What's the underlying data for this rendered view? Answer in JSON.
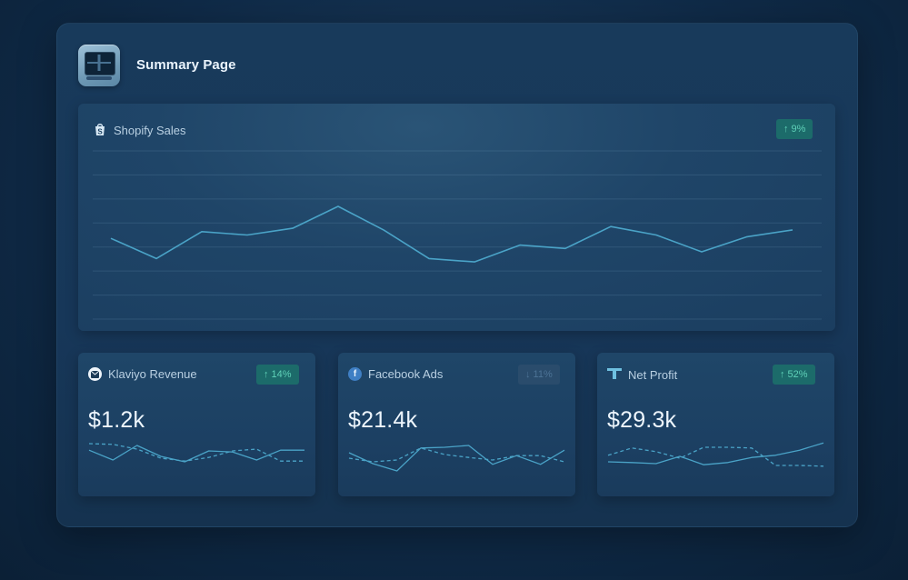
{
  "header": {
    "title": "Summary Page",
    "app_icon": "monitor-icon"
  },
  "colors": {
    "line": "#4aa3c7",
    "badge_up_bg": "#1c6b6a",
    "badge_up_text": "#5fd1b8",
    "badge_down_text": "#4c7396"
  },
  "main_chart": {
    "label": "Shopify Sales",
    "icon": "shopify-bag-icon",
    "badge": "↑ 9%"
  },
  "metrics": [
    {
      "label": "Klaviyo Revenue",
      "icon": "klaviyo-icon",
      "badge": "↑ 14%",
      "value": "$1.2k",
      "trend": "up"
    },
    {
      "label": "Facebook Ads",
      "icon": "facebook-icon",
      "badge": "↓ 11%",
      "value": "$21.4k",
      "trend": "down"
    },
    {
      "label": "Net Profit",
      "icon": "net-profit-icon",
      "badge": "↑ 52%",
      "value": "$29.3k",
      "trend": "up"
    }
  ],
  "chart_data": [
    {
      "type": "line",
      "x": [
        1,
        2,
        3,
        4,
        5,
        6,
        7,
        8,
        9,
        10,
        11,
        12,
        13,
        14,
        15,
        16
      ],
      "series": [
        {
          "values": [
            48,
            36,
            52,
            50,
            54,
            67,
            53,
            36,
            34,
            44,
            42,
            55,
            50,
            40,
            49,
            53
          ]
        }
      ],
      "ylim": [
        0,
        100
      ],
      "grid": true
    },
    {
      "type": "line",
      "x": [
        1,
        2,
        3,
        4,
        5,
        6,
        7,
        8,
        9,
        10
      ],
      "series": [
        {
          "values": [
            62,
            35,
            75,
            45,
            30,
            60,
            57,
            35,
            62,
            62
          ]
        },
        {
          "values": [
            80,
            78,
            65,
            40,
            32,
            42,
            60,
            65,
            32,
            32
          ]
        }
      ],
      "ylim": [
        0,
        100
      ],
      "grid": false
    },
    {
      "type": "line",
      "x": [
        1,
        2,
        3,
        4,
        5,
        6,
        7,
        8,
        9,
        10
      ],
      "series": [
        {
          "values": [
            55,
            25,
            5,
            68,
            70,
            75,
            23,
            47,
            23,
            62
          ]
        },
        {
          "values": [
            40,
            30,
            35,
            68,
            50,
            42,
            35,
            47,
            47,
            30
          ]
        }
      ],
      "ylim": [
        0,
        100
      ],
      "grid": false
    },
    {
      "type": "line",
      "x": [
        1,
        2,
        3,
        4,
        5,
        6,
        7,
        8,
        9,
        10
      ],
      "series": [
        {
          "values": [
            30,
            28,
            25,
            45,
            22,
            28,
            42,
            48,
            62,
            82
          ]
        },
        {
          "values": [
            48,
            68,
            58,
            40,
            70,
            70,
            68,
            20,
            20,
            18
          ]
        }
      ],
      "ylim": [
        0,
        100
      ],
      "grid": false
    }
  ]
}
